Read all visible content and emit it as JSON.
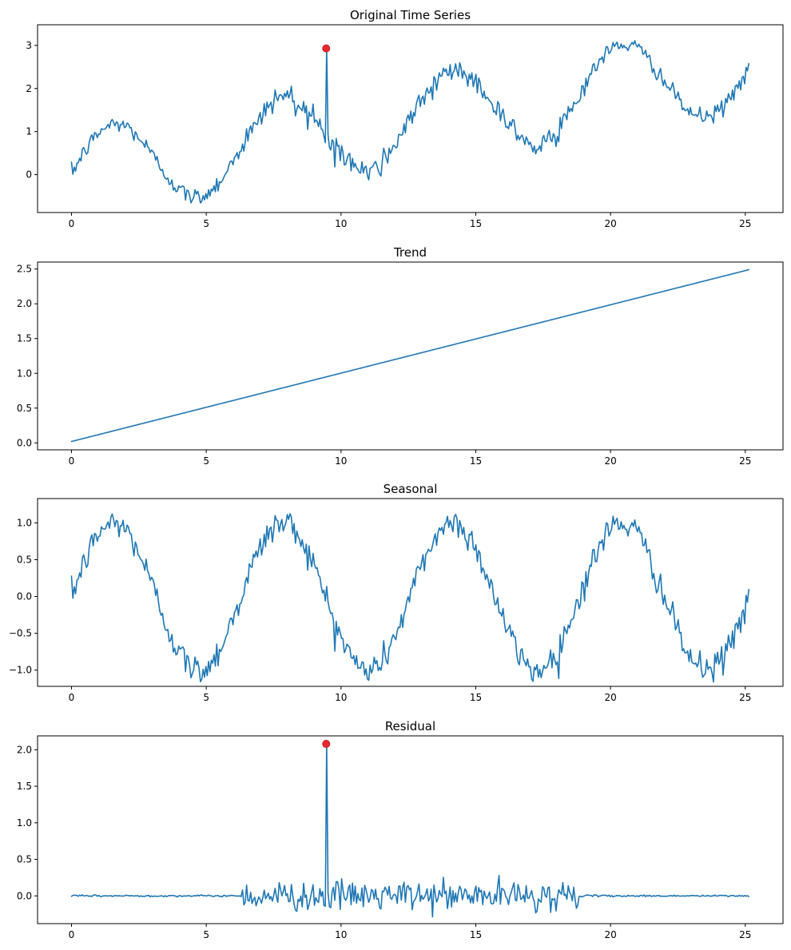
{
  "colors": {
    "line": "#1f77b4",
    "anomaly": "#ff0000",
    "frame": "#000000",
    "background": "#ffffff"
  },
  "chart_data": [
    {
      "id": "original",
      "type": "line",
      "title": "Original Time Series",
      "xlabel": "",
      "ylabel": "",
      "xlim": [
        -1.26,
        26.4
      ],
      "ylim": [
        -0.88,
        3.48
      ],
      "xticks": [
        0,
        5,
        10,
        15,
        20,
        25
      ],
      "xtick_labels": [
        "0",
        "5",
        "10",
        "15",
        "20",
        "25"
      ],
      "yticks": [
        0,
        1,
        2,
        3
      ],
      "ytick_labels": [
        "0",
        "1",
        "2",
        "3"
      ],
      "grid": false,
      "x_range": [
        0,
        25.13
      ],
      "points": 500,
      "trend": {
        "start": 0.02,
        "end": 2.49
      },
      "seasonal_amplitude": 1.0,
      "noise_std": 0.1,
      "anomaly": {
        "x": 9.45,
        "y": 2.93
      }
    },
    {
      "id": "trend",
      "type": "line",
      "title": "Trend",
      "xlabel": "",
      "ylabel": "",
      "xlim": [
        -1.26,
        26.4
      ],
      "ylim": [
        -0.1,
        2.6
      ],
      "xticks": [
        0,
        5,
        10,
        15,
        20,
        25
      ],
      "xtick_labels": [
        "0",
        "5",
        "10",
        "15",
        "20",
        "25"
      ],
      "yticks": [
        0,
        0.5,
        1.0,
        1.5,
        2.0,
        2.5
      ],
      "ytick_labels": [
        "0.0",
        "0.5",
        "1.0",
        "1.5",
        "2.0",
        "2.5"
      ],
      "grid": false,
      "x_range": [
        0,
        25.13
      ],
      "points": 500,
      "y_start": 0.02,
      "y_end": 2.49
    },
    {
      "id": "seasonal",
      "type": "line",
      "title": "Seasonal",
      "xlabel": "",
      "ylabel": "",
      "xlim": [
        -1.26,
        26.4
      ],
      "ylim": [
        -1.22,
        1.33
      ],
      "xticks": [
        0,
        5,
        10,
        15,
        20,
        25
      ],
      "xtick_labels": [
        "0",
        "5",
        "10",
        "15",
        "20",
        "25"
      ],
      "yticks": [
        -1.0,
        -0.5,
        0.0,
        0.5,
        1.0
      ],
      "ytick_labels": [
        "−1.0",
        "−0.5",
        "0.0",
        "0.5",
        "1.0"
      ],
      "grid": false,
      "x_range": [
        0,
        25.13
      ],
      "points": 500,
      "amplitude": 1.0,
      "noise_std": 0.1
    },
    {
      "id": "residual",
      "type": "line",
      "title": "Residual",
      "xlabel": "",
      "ylabel": "",
      "xlim": [
        -1.26,
        26.4
      ],
      "ylim": [
        -0.38,
        2.19
      ],
      "xticks": [
        0,
        5,
        10,
        15,
        20,
        25
      ],
      "xtick_labels": [
        "0",
        "5",
        "10",
        "15",
        "20",
        "25"
      ],
      "yticks": [
        0.0,
        0.5,
        1.0,
        1.5,
        2.0
      ],
      "ytick_labels": [
        "0.0",
        "0.5",
        "1.0",
        "1.5",
        "2.0"
      ],
      "grid": false,
      "x_range": [
        0,
        25.13
      ],
      "points": 500,
      "noisy_window": [
        6.3,
        18.8
      ],
      "window_noise_std": 0.1,
      "baseline_noise_std": 0.006,
      "anomaly": {
        "x": 9.45,
        "y": 2.08
      }
    }
  ]
}
